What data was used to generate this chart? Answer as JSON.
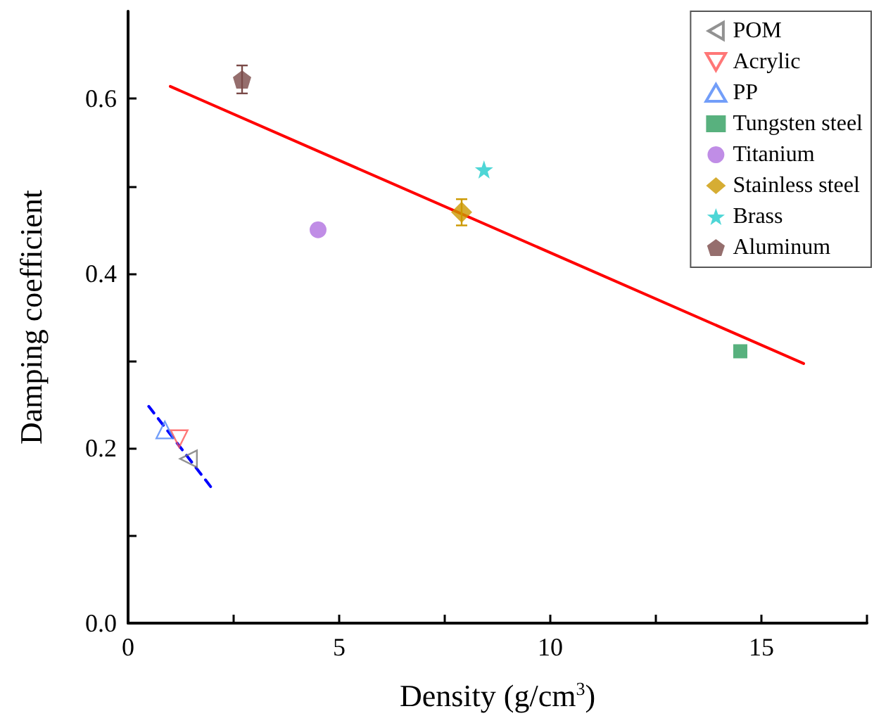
{
  "chart_data": {
    "type": "scatter",
    "xlabel": "Density (g/cm$^{3}$)",
    "ylabel": "Damping coefficient",
    "xlim": [
      0,
      17.5
    ],
    "ylim": [
      0,
      0.7
    ],
    "xticks": [
      0,
      {
        "value": 2.5,
        "label": null
      },
      5,
      {
        "value": 7.5,
        "label": null
      },
      10,
      {
        "value": 12.5,
        "label": null
      },
      15,
      {
        "value": 17.5,
        "label": null
      }
    ],
    "yticks": [
      {
        "value": 0,
        "label": "0.0"
      },
      {
        "value": 0.1,
        "label": null
      },
      {
        "value": 0.2,
        "label": "0.2"
      },
      {
        "value": 0.3,
        "label": null
      },
      {
        "value": 0.4,
        "label": "0.4"
      },
      {
        "value": 0.5,
        "label": null
      },
      {
        "value": 0.6,
        "label": "0.6"
      }
    ],
    "grid": false,
    "legend": "top right",
    "series": [
      {
        "name": "POM",
        "color": "#777777",
        "marker": "triangle",
        "x": [
          1.43
        ],
        "values": [
          0.188
        ]
      },
      {
        "name": "Acrylic",
        "color": "#ff5555",
        "marker": "triangle",
        "x": [
          1.21
        ],
        "values": [
          0.211
        ]
      },
      {
        "name": "PP",
        "color": "#4f86f7",
        "marker": "triangle",
        "x": [
          0.87
        ],
        "values": [
          0.221
        ]
      },
      {
        "name": "Tungsten steel",
        "color": "#2e9e5e",
        "marker": "square",
        "x": [
          14.5
        ],
        "values": [
          0.311
        ]
      },
      {
        "name": "Titanium",
        "color": "#b070e0",
        "marker": "circle",
        "x": [
          4.5
        ],
        "values": [
          0.45
        ]
      },
      {
        "name": "Stainless steel",
        "color": "#cc9900",
        "marker": "diamond",
        "x": [
          7.9
        ],
        "values": [
          0.47
        ],
        "errors": [
          0.015
        ]
      },
      {
        "name": "Brass",
        "color": "#22cccc",
        "marker": "star",
        "x": [
          8.43
        ],
        "values": [
          0.519
        ]
      },
      {
        "name": "Aluminum",
        "color": "#7a4a48",
        "x": [
          2.7
        ],
        "values": [
          0.622
        ],
        "errors": [
          0.016
        ]
      },
      {
        "type": "line",
        "color": "#ff0000",
        "marker": "none",
        "line_style": "solid",
        "x": [
          1,
          16
        ],
        "values": [
          0.614,
          0.297
        ]
      },
      {
        "type": "line",
        "color": "#0000ff",
        "marker": "none",
        "line_style": "dashed",
        "x": [
          0.49,
          1.99
        ],
        "values": [
          0.248,
          0.154
        ]
      }
    ]
  }
}
